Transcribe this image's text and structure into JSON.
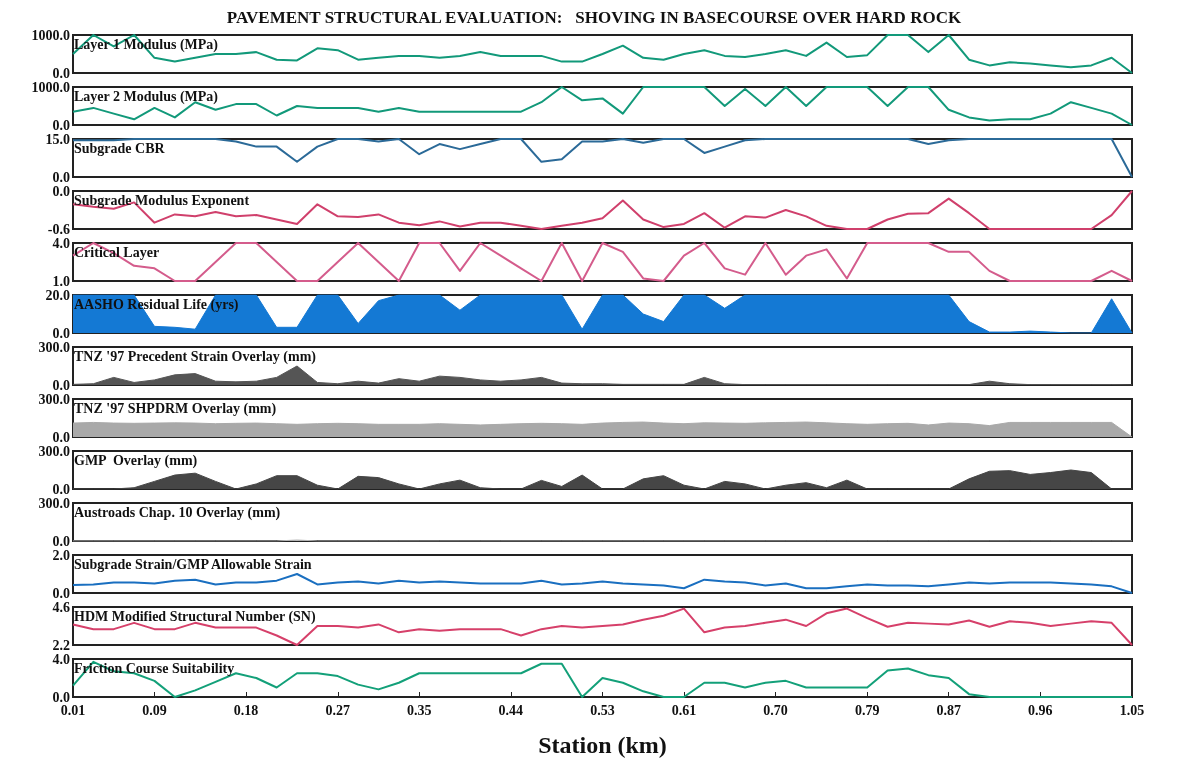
{
  "chart_data": [
    {
      "type": "line",
      "annotations": [
        "PAVEMENT STRUCTURAL EVALUATION:   SHOVING IN BASECOURSE OVER HARD ROCK"
      ],
      "title": "Layer 1 Modulus (MPa)",
      "color": "#12997a",
      "marker": "none",
      "tick_labels": "y",
      "xlim": [
        0.01,
        1.05
      ],
      "ylim": [
        0,
        1000
      ],
      "yticks": [
        {
          "value": 0,
          "label": "0.0"
        },
        {
          "value": 1000,
          "label": "1000.0"
        }
      ],
      "x": [
        0.01,
        0.03,
        0.05,
        0.07,
        0.09,
        0.11,
        0.13,
        0.15,
        0.17,
        0.19,
        0.21,
        0.23,
        0.25,
        0.27,
        0.29,
        0.31,
        0.33,
        0.35,
        0.37,
        0.39,
        0.41,
        0.43,
        0.45,
        0.47,
        0.49,
        0.51,
        0.53,
        0.55,
        0.57,
        0.59,
        0.61,
        0.63,
        0.65,
        0.67,
        0.69,
        0.71,
        0.73,
        0.75,
        0.77,
        0.79,
        0.81,
        0.83,
        0.85,
        0.87,
        0.89,
        0.91,
        0.93,
        0.95,
        0.97,
        0.99,
        1.01,
        1.03,
        1.05
      ],
      "values": [
        500,
        1000,
        700,
        1000,
        400,
        300,
        400,
        500,
        500,
        550,
        350,
        330,
        650,
        600,
        350,
        400,
        450,
        450,
        400,
        450,
        550,
        450,
        450,
        450,
        300,
        300,
        500,
        720,
        400,
        350,
        500,
        600,
        450,
        420,
        500,
        600,
        450,
        800,
        420,
        470,
        1000,
        1000,
        550,
        1000,
        350,
        200,
        280,
        250,
        200,
        150,
        200,
        400,
        0
      ]
    },
    {
      "type": "line",
      "title": "Layer 2 Modulus (MPa)",
      "color": "#12997a",
      "marker": "none",
      "tick_labels": "y",
      "xlim": [
        0.01,
        1.05
      ],
      "ylim": [
        0,
        1000
      ],
      "yticks": [
        {
          "value": 0,
          "label": "0.0"
        },
        {
          "value": 1000,
          "label": "1000.0"
        }
      ],
      "x": [
        0.01,
        0.03,
        0.05,
        0.07,
        0.09,
        0.11,
        0.13,
        0.15,
        0.17,
        0.19,
        0.21,
        0.23,
        0.25,
        0.27,
        0.29,
        0.31,
        0.33,
        0.35,
        0.37,
        0.39,
        0.41,
        0.43,
        0.45,
        0.47,
        0.49,
        0.51,
        0.53,
        0.55,
        0.57,
        0.59,
        0.61,
        0.63,
        0.65,
        0.67,
        0.69,
        0.71,
        0.73,
        0.75,
        0.77,
        0.79,
        0.81,
        0.83,
        0.85,
        0.87,
        0.89,
        0.91,
        0.93,
        0.95,
        0.97,
        0.99,
        1.01,
        1.03,
        1.05
      ],
      "values": [
        350,
        450,
        300,
        150,
        450,
        200,
        600,
        400,
        550,
        550,
        250,
        500,
        450,
        450,
        450,
        350,
        450,
        350,
        350,
        350,
        350,
        350,
        350,
        600,
        1000,
        650,
        700,
        300,
        1000,
        1000,
        1000,
        1000,
        500,
        950,
        500,
        1000,
        500,
        1000,
        1000,
        1000,
        500,
        1000,
        1000,
        400,
        200,
        120,
        150,
        150,
        300,
        600,
        450,
        300,
        0
      ]
    },
    {
      "type": "line",
      "title": "Subgrade CBR",
      "color": "#2b6a98",
      "marker": "none",
      "tick_labels": "y",
      "xlim": [
        0.01,
        1.05
      ],
      "ylim": [
        0,
        15
      ],
      "yticks": [
        {
          "value": 0,
          "label": "0.0"
        },
        {
          "value": 15,
          "label": "15.0"
        }
      ],
      "x": [
        0.01,
        0.03,
        0.05,
        0.07,
        0.09,
        0.11,
        0.13,
        0.15,
        0.17,
        0.19,
        0.21,
        0.23,
        0.25,
        0.27,
        0.29,
        0.31,
        0.33,
        0.35,
        0.37,
        0.39,
        0.41,
        0.43,
        0.45,
        0.47,
        0.49,
        0.51,
        0.53,
        0.55,
        0.57,
        0.59,
        0.61,
        0.63,
        0.65,
        0.67,
        0.69,
        0.71,
        0.73,
        0.75,
        0.77,
        0.79,
        0.81,
        0.83,
        0.85,
        0.87,
        0.89,
        0.91,
        0.93,
        0.95,
        0.97,
        0.99,
        1.01,
        1.03,
        1.05
      ],
      "values": [
        14.5,
        14.5,
        14.5,
        15,
        15,
        15,
        15,
        15,
        14,
        12,
        12,
        6,
        12,
        15,
        15,
        14,
        15,
        9,
        13,
        11,
        13,
        15,
        15,
        6,
        7,
        14,
        14,
        15,
        13.5,
        15,
        15,
        9.5,
        12,
        14.5,
        15,
        15,
        15,
        15,
        15,
        15,
        15,
        15,
        13,
        14.5,
        15,
        15,
        15,
        15,
        15,
        15,
        15,
        15,
        0
      ]
    },
    {
      "type": "line",
      "title": "Subgrade Modulus Exponent",
      "color": "#d0406c",
      "marker": "none",
      "tick_labels": "y",
      "xlim": [
        0.01,
        1.05
      ],
      "ylim": [
        -0.6,
        0
      ],
      "yticks": [
        {
          "value": -0.6,
          "label": "-0.6"
        },
        {
          "value": 0,
          "label": "0.0"
        }
      ],
      "x": [
        0.01,
        0.03,
        0.05,
        0.07,
        0.09,
        0.11,
        0.13,
        0.15,
        0.17,
        0.19,
        0.21,
        0.23,
        0.25,
        0.27,
        0.29,
        0.31,
        0.33,
        0.35,
        0.37,
        0.39,
        0.41,
        0.43,
        0.45,
        0.47,
        0.49,
        0.51,
        0.53,
        0.55,
        0.57,
        0.59,
        0.61,
        0.63,
        0.65,
        0.67,
        0.69,
        0.71,
        0.73,
        0.75,
        0.77,
        0.79,
        0.81,
        0.83,
        0.85,
        0.87,
        0.89,
        0.91,
        0.93,
        0.95,
        0.97,
        0.99,
        1.01,
        1.03,
        1.05
      ],
      "values": [
        -0.21,
        -0.25,
        -0.28,
        -0.18,
        -0.5,
        -0.37,
        -0.4,
        -0.33,
        -0.4,
        -0.38,
        -0.45,
        -0.52,
        -0.21,
        -0.4,
        -0.41,
        -0.37,
        -0.5,
        -0.54,
        -0.48,
        -0.56,
        -0.5,
        -0.5,
        -0.55,
        -0.6,
        -0.55,
        -0.5,
        -0.43,
        -0.15,
        -0.45,
        -0.57,
        -0.52,
        -0.35,
        -0.58,
        -0.4,
        -0.42,
        -0.3,
        -0.4,
        -0.55,
        -0.6,
        -0.6,
        -0.45,
        -0.36,
        -0.35,
        -0.12,
        -0.35,
        -0.6,
        -0.6,
        -0.6,
        -0.6,
        -0.6,
        -0.6,
        -0.38,
        0
      ]
    },
    {
      "type": "line",
      "title": "Critical Layer",
      "color": "#d45c8c",
      "marker": "none",
      "tick_labels": "y",
      "xlim": [
        0.01,
        1.05
      ],
      "ylim": [
        1,
        4
      ],
      "yticks": [
        {
          "value": 1,
          "label": "1.0"
        },
        {
          "value": 4,
          "label": "4.0"
        }
      ],
      "x": [
        0.01,
        0.03,
        0.05,
        0.07,
        0.09,
        0.11,
        0.13,
        0.15,
        0.17,
        0.19,
        0.21,
        0.23,
        0.25,
        0.27,
        0.29,
        0.31,
        0.33,
        0.35,
        0.37,
        0.39,
        0.41,
        0.43,
        0.45,
        0.47,
        0.49,
        0.51,
        0.53,
        0.55,
        0.57,
        0.59,
        0.61,
        0.63,
        0.65,
        0.67,
        0.69,
        0.71,
        0.73,
        0.75,
        0.77,
        0.79,
        0.81,
        0.83,
        0.85,
        0.87,
        0.89,
        0.91,
        0.93,
        0.95,
        0.97,
        0.99,
        1.01,
        1.03,
        1.05
      ],
      "values": [
        3,
        4,
        3.2,
        2.2,
        2,
        1,
        1,
        2.5,
        4,
        4,
        2.5,
        1,
        1,
        2.5,
        4,
        2.5,
        1,
        4,
        4,
        1.8,
        4,
        3,
        2,
        1,
        4,
        1,
        4,
        3.3,
        1.2,
        1,
        3,
        4,
        2,
        1.5,
        4,
        1.5,
        3,
        3.5,
        1.2,
        4,
        4,
        4,
        4,
        3.3,
        3.3,
        1.8,
        1,
        1,
        1,
        1,
        1,
        1.8,
        1
      ]
    },
    {
      "type": "area",
      "title": "AASHO Residual Life (yrs)",
      "color": "#1479d4",
      "marker": "none",
      "tick_labels": "y",
      "xlim": [
        0.01,
        1.05
      ],
      "ylim": [
        0,
        20
      ],
      "yticks": [
        {
          "value": 0,
          "label": "0.0"
        },
        {
          "value": 20,
          "label": "20.0"
        }
      ],
      "x": [
        0.01,
        0.03,
        0.05,
        0.07,
        0.09,
        0.11,
        0.13,
        0.15,
        0.17,
        0.19,
        0.21,
        0.23,
        0.25,
        0.27,
        0.29,
        0.31,
        0.33,
        0.35,
        0.37,
        0.39,
        0.41,
        0.43,
        0.45,
        0.47,
        0.49,
        0.51,
        0.53,
        0.55,
        0.57,
        0.59,
        0.61,
        0.63,
        0.65,
        0.67,
        0.69,
        0.71,
        0.73,
        0.75,
        0.77,
        0.79,
        0.81,
        0.83,
        0.85,
        0.87,
        0.89,
        0.91,
        0.93,
        0.95,
        0.97,
        0.99,
        1.01,
        1.03,
        1.05
      ],
      "values": [
        20,
        20,
        20,
        20,
        3.5,
        3,
        2,
        20,
        20,
        20,
        3,
        3,
        20,
        20,
        5,
        17,
        20,
        20,
        20,
        12,
        20,
        20,
        20,
        20,
        20,
        2,
        20,
        20,
        10,
        6,
        20,
        20,
        13,
        20,
        20,
        20,
        20,
        20,
        20,
        20,
        20,
        20,
        20,
        20,
        6,
        0.5,
        0.5,
        1,
        0.5,
        0,
        0,
        18,
        0
      ]
    },
    {
      "type": "area",
      "title": "TNZ '97 Precedent Strain Overlay (mm)",
      "color": "#555555",
      "marker": "none",
      "tick_labels": "y",
      "xlim": [
        0.01,
        1.05
      ],
      "ylim": [
        0,
        300
      ],
      "yticks": [
        {
          "value": 0,
          "label": "0.0"
        },
        {
          "value": 300,
          "label": "300.0"
        }
      ],
      "x": [
        0.01,
        0.03,
        0.05,
        0.07,
        0.09,
        0.11,
        0.13,
        0.15,
        0.17,
        0.19,
        0.21,
        0.23,
        0.25,
        0.27,
        0.29,
        0.31,
        0.33,
        0.35,
        0.37,
        0.39,
        0.41,
        0.43,
        0.45,
        0.47,
        0.49,
        0.51,
        0.53,
        0.55,
        0.57,
        0.59,
        0.61,
        0.63,
        0.65,
        0.67,
        0.69,
        0.71,
        0.73,
        0.75,
        0.77,
        0.79,
        0.81,
        0.83,
        0.85,
        0.87,
        0.89,
        0.91,
        0.93,
        0.95,
        0.97,
        0.99,
        1.01,
        1.03,
        1.05
      ],
      "values": [
        5,
        10,
        60,
        20,
        40,
        80,
        90,
        30,
        25,
        30,
        60,
        150,
        20,
        10,
        30,
        15,
        50,
        30,
        70,
        60,
        40,
        30,
        40,
        60,
        15,
        10,
        10,
        5,
        5,
        5,
        5,
        60,
        10,
        3,
        3,
        3,
        3,
        3,
        3,
        3,
        3,
        3,
        3,
        3,
        3,
        30,
        10,
        3,
        3,
        3,
        3,
        3,
        0
      ]
    },
    {
      "type": "area",
      "title": "TNZ '97 SHPDRM Overlay (mm)",
      "color": "#a9a9a9",
      "marker": "none",
      "tick_labels": "y",
      "xlim": [
        0.01,
        1.05
      ],
      "ylim": [
        0,
        300
      ],
      "yticks": [
        {
          "value": 0,
          "label": "0.0"
        },
        {
          "value": 300,
          "label": "300.0"
        }
      ],
      "x": [
        0.01,
        0.03,
        0.05,
        0.07,
        0.09,
        0.11,
        0.13,
        0.15,
        0.17,
        0.19,
        0.21,
        0.23,
        0.25,
        0.27,
        0.29,
        0.31,
        0.33,
        0.35,
        0.37,
        0.39,
        0.41,
        0.43,
        0.45,
        0.47,
        0.49,
        0.51,
        0.53,
        0.55,
        0.57,
        0.59,
        0.61,
        0.63,
        0.65,
        0.67,
        0.69,
        0.71,
        0.73,
        0.75,
        0.77,
        0.79,
        0.81,
        0.83,
        0.85,
        0.87,
        0.89,
        0.91,
        0.93,
        0.95,
        0.97,
        0.99,
        1.01,
        1.03,
        1.05
      ],
      "values": [
        110,
        115,
        110,
        108,
        110,
        112,
        110,
        105,
        108,
        110,
        105,
        100,
        105,
        108,
        105,
        100,
        100,
        100,
        105,
        100,
        95,
        100,
        105,
        108,
        105,
        100,
        110,
        115,
        118,
        110,
        105,
        112,
        110,
        108,
        112,
        115,
        118,
        112,
        105,
        100,
        105,
        108,
        95,
        110,
        105,
        90,
        115,
        115,
        115,
        115,
        115,
        115,
        0
      ]
    },
    {
      "type": "area",
      "title": "GMP  Overlay (mm)",
      "color": "#464646",
      "marker": "none",
      "tick_labels": "y",
      "xlim": [
        0.01,
        1.05
      ],
      "ylim": [
        0,
        300
      ],
      "yticks": [
        {
          "value": 0,
          "label": "0.0"
        },
        {
          "value": 300,
          "label": "300.0"
        }
      ],
      "x": [
        0.01,
        0.03,
        0.05,
        0.07,
        0.09,
        0.11,
        0.13,
        0.15,
        0.17,
        0.19,
        0.21,
        0.23,
        0.25,
        0.27,
        0.29,
        0.31,
        0.33,
        0.35,
        0.37,
        0.39,
        0.41,
        0.43,
        0.45,
        0.47,
        0.49,
        0.51,
        0.53,
        0.55,
        0.57,
        0.59,
        0.61,
        0.63,
        0.65,
        0.67,
        0.69,
        0.71,
        0.73,
        0.75,
        0.77,
        0.79,
        0.81,
        0.83,
        0.85,
        0.87,
        0.89,
        0.91,
        0.93,
        0.95,
        0.97,
        0.99,
        1.01,
        1.03,
        1.05
      ],
      "values": [
        0,
        0,
        0,
        10,
        60,
        110,
        125,
        60,
        0,
        40,
        105,
        105,
        30,
        0,
        100,
        90,
        40,
        0,
        40,
        70,
        10,
        0,
        0,
        68,
        20,
        110,
        0,
        0,
        80,
        105,
        30,
        0,
        60,
        40,
        0,
        30,
        50,
        10,
        70,
        0,
        0,
        0,
        0,
        0,
        80,
        140,
        145,
        115,
        130,
        150,
        130,
        0,
        0
      ]
    },
    {
      "type": "area",
      "title": "Austroads Chap. 10 Overlay (mm)",
      "color": "#b8b8b8",
      "marker": "none",
      "tick_labels": "y",
      "xlim": [
        0.01,
        1.05
      ],
      "ylim": [
        0,
        300
      ],
      "yticks": [
        {
          "value": 0,
          "label": "0.0"
        },
        {
          "value": 300,
          "label": "300.0"
        }
      ],
      "x": [
        0.01,
        0.03,
        0.05,
        0.07,
        0.09,
        0.11,
        0.13,
        0.15,
        0.17,
        0.19,
        0.21,
        0.23,
        0.25,
        0.27,
        0.29,
        0.31,
        0.33,
        0.35,
        0.37,
        0.39,
        0.41,
        0.43,
        0.45,
        0.47,
        0.49,
        0.51,
        0.53,
        0.55,
        0.57,
        0.59,
        0.61,
        0.63,
        0.65,
        0.67,
        0.69,
        0.71,
        0.73,
        0.75,
        0.77,
        0.79,
        0.81,
        0.83,
        0.85,
        0.87,
        0.89,
        0.91,
        0.93,
        0.95,
        0.97,
        0.99,
        1.01,
        1.03,
        1.05
      ],
      "values": [
        0,
        0,
        0,
        0,
        0,
        0,
        0,
        0,
        0,
        0,
        0,
        8,
        0,
        0,
        0,
        0,
        0,
        0,
        0,
        0,
        0,
        0,
        0,
        0,
        0,
        0,
        0,
        0,
        0,
        0,
        0,
        0,
        0,
        0,
        0,
        0,
        0,
        0,
        0,
        0,
        0,
        0,
        0,
        0,
        0,
        0,
        0,
        0,
        0,
        0,
        0,
        0,
        0
      ]
    },
    {
      "type": "line",
      "title": "Subgrade Strain/GMP Allowable Strain",
      "color": "#1a6fc0",
      "marker": "none",
      "tick_labels": "y",
      "xlim": [
        0.01,
        1.05
      ],
      "ylim": [
        0,
        2
      ],
      "yticks": [
        {
          "value": 0,
          "label": "0.0"
        },
        {
          "value": 2,
          "label": "2.0"
        }
      ],
      "x": [
        0.01,
        0.03,
        0.05,
        0.07,
        0.09,
        0.11,
        0.13,
        0.15,
        0.17,
        0.19,
        0.21,
        0.23,
        0.25,
        0.27,
        0.29,
        0.31,
        0.33,
        0.35,
        0.37,
        0.39,
        0.41,
        0.43,
        0.45,
        0.47,
        0.49,
        0.51,
        0.53,
        0.55,
        0.57,
        0.59,
        0.61,
        0.63,
        0.65,
        0.67,
        0.69,
        0.71,
        0.73,
        0.75,
        0.77,
        0.79,
        0.81,
        0.83,
        0.85,
        0.87,
        0.89,
        0.91,
        0.93,
        0.95,
        0.97,
        0.99,
        1.01,
        1.03,
        1.05
      ],
      "values": [
        0.42,
        0.45,
        0.55,
        0.55,
        0.5,
        0.65,
        0.7,
        0.45,
        0.55,
        0.55,
        0.65,
        1.0,
        0.45,
        0.55,
        0.6,
        0.5,
        0.65,
        0.55,
        0.6,
        0.55,
        0.5,
        0.5,
        0.5,
        0.65,
        0.45,
        0.5,
        0.6,
        0.5,
        0.45,
        0.4,
        0.25,
        0.7,
        0.6,
        0.55,
        0.4,
        0.5,
        0.25,
        0.25,
        0.35,
        0.45,
        0.4,
        0.4,
        0.35,
        0.45,
        0.55,
        0.5,
        0.55,
        0.55,
        0.55,
        0.5,
        0.45,
        0.35,
        0
      ]
    },
    {
      "type": "line",
      "title": "HDM Modified Structural Number (SN)",
      "color": "#d6406a",
      "marker": "none",
      "tick_labels": "y",
      "xlim": [
        0.01,
        1.05
      ],
      "ylim": [
        2.2,
        4.6
      ],
      "yticks": [
        {
          "value": 2.2,
          "label": "2.2"
        },
        {
          "value": 4.6,
          "label": "4.6"
        }
      ],
      "x": [
        0.01,
        0.03,
        0.05,
        0.07,
        0.09,
        0.11,
        0.13,
        0.15,
        0.17,
        0.19,
        0.21,
        0.23,
        0.25,
        0.27,
        0.29,
        0.31,
        0.33,
        0.35,
        0.37,
        0.39,
        0.41,
        0.43,
        0.45,
        0.47,
        0.49,
        0.51,
        0.53,
        0.55,
        0.57,
        0.59,
        0.61,
        0.63,
        0.65,
        0.67,
        0.69,
        0.71,
        0.73,
        0.75,
        0.77,
        0.79,
        0.81,
        0.83,
        0.85,
        0.87,
        0.89,
        0.91,
        0.93,
        0.95,
        0.97,
        0.99,
        1.01,
        1.03,
        1.05
      ],
      "values": [
        3.5,
        3.2,
        3.2,
        3.6,
        3.2,
        3.2,
        3.6,
        3.3,
        3.3,
        3.3,
        2.8,
        2.2,
        3.4,
        3.4,
        3.3,
        3.5,
        3.0,
        3.2,
        3.1,
        3.2,
        3.2,
        3.2,
        2.8,
        3.2,
        3.4,
        3.3,
        3.4,
        3.5,
        3.8,
        4.05,
        4.5,
        3.0,
        3.3,
        3.4,
        3.6,
        3.8,
        3.4,
        4.2,
        4.5,
        3.9,
        3.35,
        3.6,
        3.55,
        3.5,
        3.75,
        3.35,
        3.7,
        3.6,
        3.4,
        3.55,
        3.7,
        3.6,
        2.2
      ]
    },
    {
      "type": "line",
      "title": "Friction Course Suitability",
      "xlabel": "Station (km)",
      "color": "#13a079",
      "marker": "none",
      "xlim": [
        0.01,
        1.05
      ],
      "ylim": [
        0,
        4
      ],
      "yticks": [
        {
          "value": 0,
          "label": "0.0"
        },
        {
          "value": 4,
          "label": "4.0"
        }
      ],
      "xticks": [
        {
          "value": 0.01,
          "label": "0.01"
        },
        {
          "value": 0.09,
          "label": "0.09"
        },
        {
          "value": 0.18,
          "label": "0.18"
        },
        {
          "value": 0.27,
          "label": "0.27"
        },
        {
          "value": 0.35,
          "label": "0.35"
        },
        {
          "value": 0.44,
          "label": "0.44"
        },
        {
          "value": 0.53,
          "label": "0.53"
        },
        {
          "value": 0.61,
          "label": "0.61"
        },
        {
          "value": 0.7,
          "label": "0.70"
        },
        {
          "value": 0.79,
          "label": "0.79"
        },
        {
          "value": 0.87,
          "label": "0.87"
        },
        {
          "value": 0.96,
          "label": "0.96"
        },
        {
          "value": 1.05,
          "label": "1.05"
        }
      ],
      "x": [
        0.01,
        0.03,
        0.05,
        0.07,
        0.09,
        0.11,
        0.13,
        0.15,
        0.17,
        0.19,
        0.21,
        0.23,
        0.25,
        0.27,
        0.29,
        0.31,
        0.33,
        0.35,
        0.37,
        0.39,
        0.41,
        0.43,
        0.45,
        0.47,
        0.49,
        0.51,
        0.53,
        0.55,
        0.57,
        0.59,
        0.61,
        0.63,
        0.65,
        0.67,
        0.69,
        0.71,
        0.73,
        0.75,
        0.77,
        0.79,
        0.81,
        0.83,
        0.85,
        0.87,
        0.89,
        0.91,
        0.93,
        0.95,
        0.97,
        0.99,
        1.01,
        1.03,
        1.05
      ],
      "values": [
        1.2,
        3.7,
        2.7,
        2.5,
        1.7,
        0,
        0.7,
        1.6,
        2.5,
        2.0,
        1.0,
        2.5,
        2.5,
        2.2,
        1.3,
        0.8,
        1.5,
        2.5,
        2.5,
        2.5,
        2.5,
        2.5,
        2.5,
        3.5,
        3.5,
        0,
        2.0,
        1.5,
        0.6,
        0,
        0,
        1.5,
        1.5,
        1.0,
        1.5,
        1.7,
        1.0,
        1.0,
        1.0,
        1.0,
        2.8,
        3.0,
        2.3,
        2.0,
        0.3,
        0,
        0,
        0,
        0,
        0,
        0,
        0,
        0
      ]
    }
  ]
}
